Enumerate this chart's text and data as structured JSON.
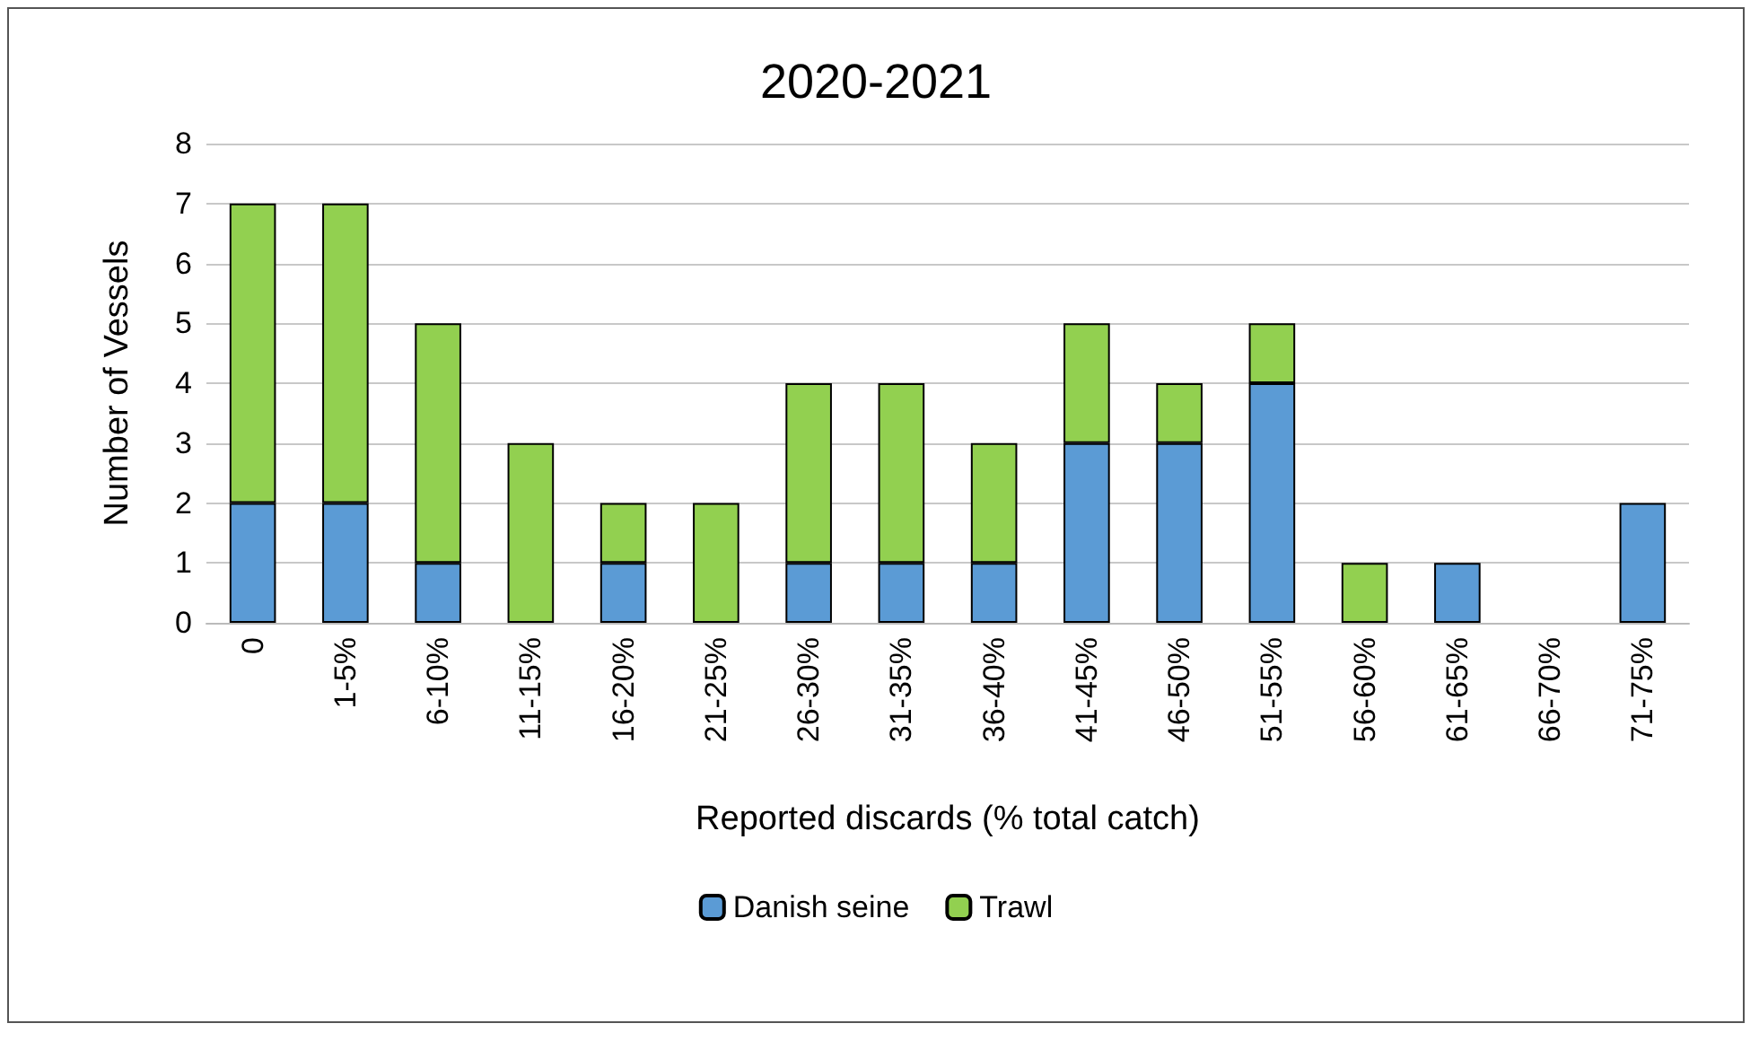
{
  "chart_data": {
    "type": "bar",
    "title": "2020-2021",
    "xlabel": "Reported discards (% total catch)",
    "ylabel": "Number of Vessels",
    "categories": [
      "0",
      "1-5%",
      "6-10%",
      "11-15%",
      "16-20%",
      "21-25%",
      "26-30%",
      "31-35%",
      "36-40%",
      "41-45%",
      "46-50%",
      "51-55%",
      "56-60%",
      "61-65%",
      "66-70%",
      "71-75%"
    ],
    "series": [
      {
        "name": "Danish seine",
        "color": "#5b9bd5",
        "values": [
          2,
          2,
          1,
          0,
          1,
          0,
          1,
          1,
          1,
          3,
          3,
          4,
          0,
          1,
          0,
          2
        ]
      },
      {
        "name": "Trawl",
        "color": "#92d050",
        "values": [
          5,
          5,
          4,
          3,
          1,
          2,
          3,
          3,
          2,
          2,
          1,
          1,
          1,
          0,
          0,
          0
        ]
      }
    ],
    "stacked": true,
    "ylim": [
      0,
      8
    ],
    "yticks": [
      0,
      1,
      2,
      3,
      4,
      5,
      6,
      7,
      8
    ],
    "grid": "y",
    "legend": "bottom"
  }
}
